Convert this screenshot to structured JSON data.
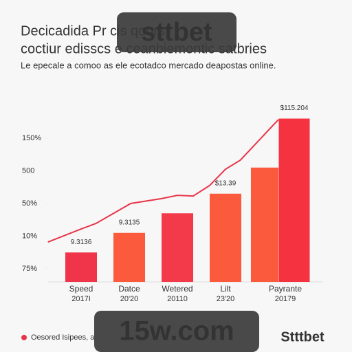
{
  "chart_data": {
    "type": "bar",
    "title_lines": [
      "Decicadida Pr cis qoors",
      "coctiur edisscs e ceanbiemontic satbries"
    ],
    "subtitle": "Le epecale a comoo as ele ecotadco mercado deapostas online.",
    "categories": [
      "Speed",
      "Datce",
      "Wetered",
      "Lilt",
      null,
      "Payrante"
    ],
    "sublabels": [
      "2017I",
      "20'20",
      "20110",
      "23'20",
      null,
      "20179"
    ],
    "values": [
      0.9,
      1.5,
      2.1,
      2.7,
      3.5,
      5.0
    ],
    "colors": [
      "#f0344a",
      "#fb5a3c",
      "#f23a4a",
      "#fb5a3c",
      "#fb5a3c",
      "#f5323f"
    ],
    "annotations": [
      "9.3136",
      "9.3135",
      null,
      "$13.39",
      null,
      "$115.204"
    ],
    "line": {
      "name": "Oesored Isipees, a",
      "color": "#e8344a",
      "x": [
        -0.69,
        0,
        0.31,
        1.03,
        1.67,
        2.0,
        2.33,
        2.67,
        3.0,
        3.31,
        4.1
      ],
      "values": [
        1.22,
        1.62,
        1.79,
        2.4,
        2.55,
        2.65,
        2.63,
        2.95,
        3.45,
        3.73,
        4.97
      ]
    },
    "ylim": [
      0,
      6
    ],
    "yticks": [
      {
        "value": 0.4,
        "label": "75%"
      },
      {
        "value": 1.4,
        "label": "10%"
      },
      {
        "value": 2.4,
        "label": "50%"
      },
      {
        "value": 3.4,
        "label": "500"
      },
      {
        "value": 4.4,
        "label": "150%"
      }
    ],
    "watermarks": [
      "sttbet",
      "15w.com",
      "Stttbet"
    ]
  }
}
